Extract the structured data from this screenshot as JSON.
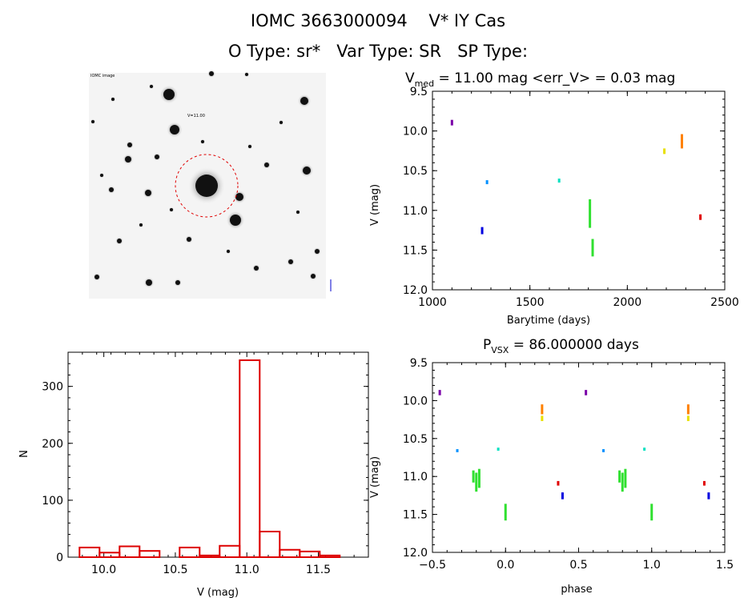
{
  "header": {
    "title_line1": "IOMC 3663000094    V* IY Cas",
    "title_line2": "O Type: sr*   Var Type: SR   SP Type:"
  },
  "image_panel": {
    "label_top_left": "IOMC image",
    "label_center": "V=11.00",
    "label_bottom_left": "",
    "label_bottom_center": "",
    "label_bottom_right": ""
  },
  "chart_data": [
    {
      "id": "time_series",
      "type": "scatter",
      "title": "V_med = 11.00 mag <err_V> = 0.03 mag",
      "title_parts": {
        "v": "V",
        "sub": "med",
        "rest": " = 11.00 mag <err_V> = 0.03 mag"
      },
      "xlabel": "Barytime (days)",
      "ylabel": "V (mag)",
      "xlim": [
        1000,
        2500
      ],
      "ylim": [
        12.0,
        9.5
      ],
      "y_inverted": true,
      "xticks": [
        1000,
        1500,
        2000,
        2500
      ],
      "yticks": [
        9.5,
        10.0,
        10.5,
        11.0,
        11.5,
        12.0
      ],
      "xtick_labels": [
        "1000",
        "1500",
        "2000",
        "2500"
      ],
      "ytick_labels": [
        "9.5",
        "10.0",
        "10.5",
        "11.0",
        "11.5",
        "12.0"
      ],
      "clusters": [
        {
          "x": 1100,
          "y0": 9.86,
          "y1": 9.93,
          "color": "#7a00a8"
        },
        {
          "x": 1255,
          "y0": 11.21,
          "y1": 11.3,
          "color": "#0000e0"
        },
        {
          "x": 1280,
          "y0": 10.62,
          "y1": 10.67,
          "color": "#0090ff"
        },
        {
          "x": 1650,
          "y0": 10.6,
          "y1": 10.65,
          "color": "#00e0c0"
        },
        {
          "x": 1808,
          "y0": 10.86,
          "y1": 11.22,
          "color": "#30e030"
        },
        {
          "x": 1822,
          "y0": 11.36,
          "y1": 11.58,
          "color": "#30e030"
        },
        {
          "x": 2190,
          "y0": 10.22,
          "y1": 10.29,
          "color": "#e8e000"
        },
        {
          "x": 2280,
          "y0": 10.04,
          "y1": 10.22,
          "color": "#ff8000"
        },
        {
          "x": 2375,
          "y0": 11.05,
          "y1": 11.12,
          "color": "#e00000"
        }
      ]
    },
    {
      "id": "histogram",
      "type": "bar",
      "title": "",
      "xlabel": "V (mag)",
      "ylabel": "N",
      "xlim": [
        9.75,
        11.85
      ],
      "ylim": [
        0,
        360
      ],
      "xticks": [
        10.0,
        10.5,
        11.0,
        11.5
      ],
      "yticks": [
        0,
        100,
        200,
        300
      ],
      "xtick_labels": [
        "10.0",
        "10.5",
        "11.0",
        "11.5"
      ],
      "ytick_labels": [
        "0",
        "100",
        "200",
        "300"
      ],
      "bin_width": 0.14,
      "bin_starts": [
        9.83,
        9.97,
        10.11,
        10.25,
        10.39,
        10.53,
        10.67,
        10.81,
        10.95,
        11.09,
        11.23,
        11.37,
        11.51
      ],
      "values": [
        17,
        8,
        19,
        11,
        0,
        17,
        3,
        20,
        346,
        45,
        13,
        10,
        3
      ],
      "color": "#dd0000"
    },
    {
      "id": "phase_plot",
      "type": "scatter",
      "title": "P_VSX = 86.000000 days",
      "title_parts": {
        "v": "P",
        "sub": "VSX",
        "rest": " = 86.000000 days"
      },
      "xlabel": "phase",
      "ylabel": "V (mag)",
      "xlim": [
        -0.5,
        1.5
      ],
      "ylim": [
        12.0,
        9.5
      ],
      "y_inverted": true,
      "xticks": [
        -0.5,
        0.0,
        0.5,
        1.0,
        1.5
      ],
      "yticks": [
        9.5,
        10.0,
        10.5,
        11.0,
        11.5,
        12.0
      ],
      "xtick_labels": [
        "−0.5",
        "0.0",
        "0.5",
        "1.0",
        "1.5"
      ],
      "ytick_labels": [
        "9.5",
        "10.0",
        "10.5",
        "11.0",
        "11.5",
        "12.0"
      ],
      "clusters": [
        {
          "x": -0.45,
          "y0": 9.86,
          "y1": 9.93,
          "color": "#7a00a8"
        },
        {
          "x": -0.33,
          "y0": 10.64,
          "y1": 10.68,
          "color": "#0090ff"
        },
        {
          "x": -0.05,
          "y0": 10.62,
          "y1": 10.66,
          "color": "#00e0c0"
        },
        {
          "x": 0.25,
          "y0": 10.05,
          "y1": 10.18,
          "color": "#ff8000"
        },
        {
          "x": 0.25,
          "y0": 10.2,
          "y1": 10.27,
          "color": "#e8e000"
        },
        {
          "x": 0.36,
          "y0": 11.06,
          "y1": 11.12,
          "color": "#e00000"
        },
        {
          "x": 0.39,
          "y0": 11.21,
          "y1": 11.3,
          "color": "#0000e0"
        },
        {
          "x": -0.22,
          "y0": 10.92,
          "y1": 11.08,
          "color": "#30e030"
        },
        {
          "x": -0.2,
          "y0": 10.95,
          "y1": 11.2,
          "color": "#30e030"
        },
        {
          "x": -0.18,
          "y0": 10.9,
          "y1": 11.15,
          "color": "#30e030"
        },
        {
          "x": 0.0,
          "y0": 11.36,
          "y1": 11.58,
          "color": "#30e030"
        },
        {
          "x": 0.55,
          "y0": 9.86,
          "y1": 9.93,
          "color": "#7a00a8"
        },
        {
          "x": 0.67,
          "y0": 10.64,
          "y1": 10.68,
          "color": "#0090ff"
        },
        {
          "x": 0.95,
          "y0": 10.62,
          "y1": 10.66,
          "color": "#00e0c0"
        },
        {
          "x": 1.25,
          "y0": 10.05,
          "y1": 10.18,
          "color": "#ff8000"
        },
        {
          "x": 1.25,
          "y0": 10.2,
          "y1": 10.27,
          "color": "#e8e000"
        },
        {
          "x": 1.36,
          "y0": 11.06,
          "y1": 11.12,
          "color": "#e00000"
        },
        {
          "x": 1.39,
          "y0": 11.21,
          "y1": 11.3,
          "color": "#0000e0"
        },
        {
          "x": 0.78,
          "y0": 10.92,
          "y1": 11.08,
          "color": "#30e030"
        },
        {
          "x": 0.8,
          "y0": 10.95,
          "y1": 11.2,
          "color": "#30e030"
        },
        {
          "x": 0.82,
          "y0": 10.9,
          "y1": 11.15,
          "color": "#30e030"
        },
        {
          "x": 1.0,
          "y0": 11.36,
          "y1": 11.58,
          "color": "#30e030"
        }
      ]
    }
  ]
}
